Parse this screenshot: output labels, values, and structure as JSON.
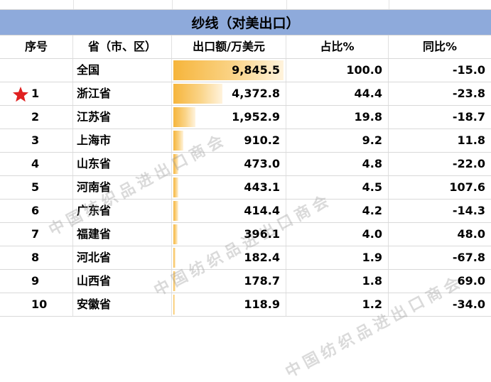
{
  "title": "纱线（对美出口）",
  "headers": [
    "序号",
    "省（市、区）",
    "出口额/万美元",
    "占比%",
    "同比%"
  ],
  "rows": [
    {
      "rank": "",
      "province": "全国",
      "export": "9,845.5",
      "share": "100.0",
      "yoy": "-15.0"
    },
    {
      "rank": "1",
      "province": "浙江省",
      "export": "4,372.8",
      "share": "44.4",
      "yoy": "-23.8"
    },
    {
      "rank": "2",
      "province": "江苏省",
      "export": "1,952.9",
      "share": "19.8",
      "yoy": "-18.7"
    },
    {
      "rank": "3",
      "province": "上海市",
      "export": "910.2",
      "share": "9.2",
      "yoy": "11.8"
    },
    {
      "rank": "4",
      "province": "山东省",
      "export": "473.0",
      "share": "4.8",
      "yoy": "-22.0"
    },
    {
      "rank": "5",
      "province": "河南省",
      "export": "443.1",
      "share": "4.5",
      "yoy": "107.6"
    },
    {
      "rank": "6",
      "province": "广东省",
      "export": "414.4",
      "share": "4.2",
      "yoy": "-14.3"
    },
    {
      "rank": "7",
      "province": "福建省",
      "export": "396.1",
      "share": "4.0",
      "yoy": "48.0"
    },
    {
      "rank": "8",
      "province": "河北省",
      "export": "182.4",
      "share": "1.9",
      "yoy": "-67.8"
    },
    {
      "rank": "9",
      "province": "山西省",
      "export": "178.7",
      "share": "1.8",
      "yoy": "69.0"
    },
    {
      "rank": "10",
      "province": "安徽省",
      "export": "118.9",
      "share": "1.2",
      "yoy": "-34.0"
    }
  ],
  "export_values": [
    9845.5,
    4372.8,
    1952.9,
    910.2,
    473.0,
    443.1,
    414.4,
    396.1,
    182.4,
    178.7,
    118.9
  ],
  "watermark": [
    "中国纺织品进出口商会",
    "中国纺织品进出口商会",
    "中国纺织品进出口商会"
  ],
  "star_icon": "star-icon",
  "colors": {
    "title_bg": "#8eaadb",
    "bar_start": "#f6b53c",
    "bar_end": "#fff3dd",
    "star": "#e02020"
  }
}
